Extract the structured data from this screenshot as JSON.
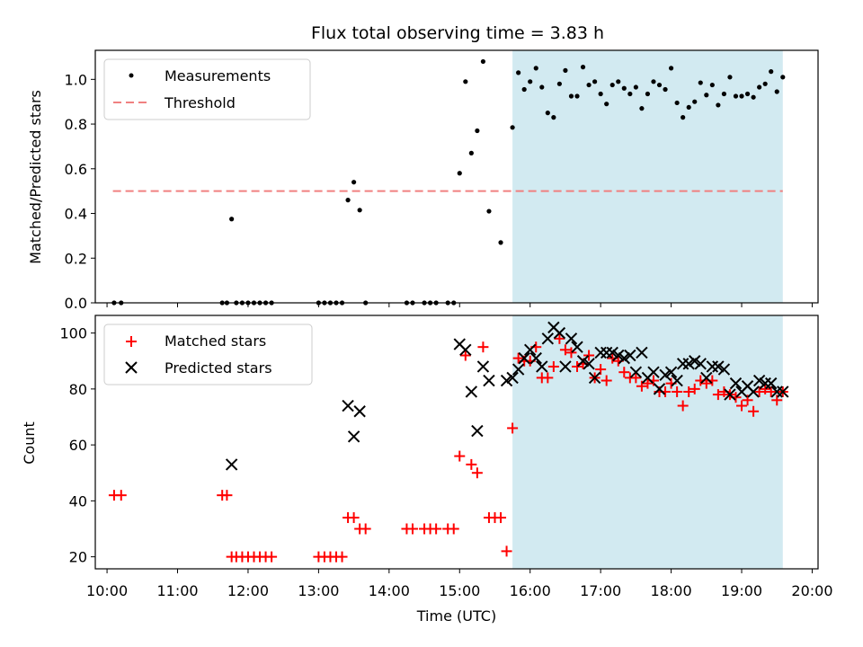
{
  "colors": {
    "measurement": "#000000",
    "threshold": "#f08080",
    "matched": "#ff0000",
    "predicted": "#000000",
    "shade": "#add8e6"
  },
  "chart_data": [
    {
      "type": "scatter",
      "title": "Flux total observing time = 3.83 h",
      "xlabel": "",
      "ylabel": "Matched/Predicted stars",
      "xlim": [
        "09:50",
        "20:05"
      ],
      "ylim": [
        0,
        1.13
      ],
      "yticks": [
        "0.0",
        "0.2",
        "0.4",
        "0.6",
        "0.8",
        "1.0"
      ],
      "grid": false,
      "legend_placement": "top-left",
      "shaded_interval": [
        "15:45",
        "19:35"
      ],
      "threshold": {
        "name": "Threshold",
        "y": 0.5,
        "x_range": [
          "10:05",
          "19:35"
        ],
        "style": "dashed"
      },
      "series": [
        {
          "name": "Measurements",
          "marker": "dot",
          "points": [
            [
              "10:06",
              0
            ],
            [
              "10:12",
              0
            ],
            [
              "11:38",
              0
            ],
            [
              "11:42",
              0
            ],
            [
              "11:46",
              0.375
            ],
            [
              "11:50",
              0
            ],
            [
              "11:55",
              0
            ],
            [
              "12:00",
              0
            ],
            [
              "12:05",
              0
            ],
            [
              "12:10",
              0
            ],
            [
              "12:15",
              0
            ],
            [
              "12:20",
              0
            ],
            [
              "13:00",
              0
            ],
            [
              "13:05",
              0
            ],
            [
              "13:10",
              0
            ],
            [
              "13:15",
              0
            ],
            [
              "13:20",
              0
            ],
            [
              "13:25",
              0.46
            ],
            [
              "13:30",
              0.54
            ],
            [
              "13:35",
              0.415
            ],
            [
              "13:40",
              0
            ],
            [
              "14:15",
              0
            ],
            [
              "14:20",
              0
            ],
            [
              "14:30",
              0
            ],
            [
              "14:35",
              0
            ],
            [
              "14:40",
              0
            ],
            [
              "14:50",
              0
            ],
            [
              "14:55",
              0
            ],
            [
              "15:00",
              0.58
            ],
            [
              "15:05",
              0.99
            ],
            [
              "15:10",
              0.67
            ],
            [
              "15:15",
              0.77
            ],
            [
              "15:20",
              1.08
            ],
            [
              "15:25",
              0.41
            ],
            [
              "15:35",
              0.27
            ],
            [
              "15:45",
              0.785
            ],
            [
              "15:50",
              1.03
            ],
            [
              "15:55",
              0.955
            ],
            [
              "16:00",
              0.99
            ],
            [
              "16:05",
              1.05
            ],
            [
              "16:10",
              0.965
            ],
            [
              "16:15",
              0.85
            ],
            [
              "16:20",
              0.83
            ],
            [
              "16:25",
              0.98
            ],
            [
              "16:30",
              1.04
            ],
            [
              "16:35",
              0.925
            ],
            [
              "16:40",
              0.925
            ],
            [
              "16:45",
              1.055
            ],
            [
              "16:50",
              0.975
            ],
            [
              "16:55",
              0.99
            ],
            [
              "17:00",
              0.935
            ],
            [
              "17:05",
              0.89
            ],
            [
              "17:10",
              0.975
            ],
            [
              "17:15",
              0.99
            ],
            [
              "17:20",
              0.96
            ],
            [
              "17:25",
              0.935
            ],
            [
              "17:30",
              0.965
            ],
            [
              "17:35",
              0.87
            ],
            [
              "17:40",
              0.935
            ],
            [
              "17:45",
              0.99
            ],
            [
              "17:50",
              0.975
            ],
            [
              "17:55",
              0.955
            ],
            [
              "18:00",
              1.05
            ],
            [
              "18:05",
              0.895
            ],
            [
              "18:10",
              0.83
            ],
            [
              "18:15",
              0.875
            ],
            [
              "18:20",
              0.9
            ],
            [
              "18:25",
              0.985
            ],
            [
              "18:30",
              0.93
            ],
            [
              "18:35",
              0.975
            ],
            [
              "18:40",
              0.885
            ],
            [
              "18:45",
              0.935
            ],
            [
              "18:50",
              1.01
            ],
            [
              "18:55",
              0.925
            ],
            [
              "19:00",
              0.925
            ],
            [
              "19:05",
              0.935
            ],
            [
              "19:10",
              0.92
            ],
            [
              "19:15",
              0.965
            ],
            [
              "19:20",
              0.98
            ],
            [
              "19:25",
              1.035
            ],
            [
              "19:30",
              0.945
            ],
            [
              "19:35",
              1.01
            ]
          ]
        }
      ]
    },
    {
      "type": "scatter",
      "title": "",
      "xlabel": "Time (UTC)",
      "ylabel": "Count",
      "xlim": [
        "09:50",
        "20:05"
      ],
      "ylim": [
        15.7,
        106.3
      ],
      "yticks": [
        "20",
        "40",
        "60",
        "80",
        "100"
      ],
      "xticks": [
        "10:00",
        "11:00",
        "12:00",
        "13:00",
        "14:00",
        "15:00",
        "16:00",
        "17:00",
        "18:00",
        "19:00",
        "20:00"
      ],
      "grid": false,
      "legend_placement": "top-left",
      "shaded_interval": [
        "15:45",
        "19:35"
      ],
      "series": [
        {
          "name": "Matched stars",
          "marker": "plus",
          "points": [
            [
              "10:06",
              42
            ],
            [
              "10:12",
              42
            ],
            [
              "11:38",
              42
            ],
            [
              "11:42",
              42
            ],
            [
              "11:46",
              20
            ],
            [
              "11:50",
              20
            ],
            [
              "11:55",
              20
            ],
            [
              "12:00",
              20
            ],
            [
              "12:05",
              20
            ],
            [
              "12:10",
              20
            ],
            [
              "12:15",
              20
            ],
            [
              "12:20",
              20
            ],
            [
              "13:00",
              20
            ],
            [
              "13:05",
              20
            ],
            [
              "13:10",
              20
            ],
            [
              "13:15",
              20
            ],
            [
              "13:20",
              20
            ],
            [
              "13:25",
              34
            ],
            [
              "13:30",
              34
            ],
            [
              "13:35",
              30
            ],
            [
              "13:40",
              30
            ],
            [
              "14:15",
              30
            ],
            [
              "14:20",
              30
            ],
            [
              "14:30",
              30
            ],
            [
              "14:35",
              30
            ],
            [
              "14:40",
              30
            ],
            [
              "14:50",
              30
            ],
            [
              "14:55",
              30
            ],
            [
              "15:00",
              56
            ],
            [
              "15:05",
              92
            ],
            [
              "15:10",
              53
            ],
            [
              "15:15",
              50
            ],
            [
              "15:20",
              95
            ],
            [
              "15:25",
              34
            ],
            [
              "15:30",
              34
            ],
            [
              "15:35",
              34
            ],
            [
              "15:40",
              22
            ],
            [
              "15:45",
              66
            ],
            [
              "15:50",
              91
            ],
            [
              "15:55",
              90
            ],
            [
              "16:00",
              90
            ],
            [
              "16:05",
              95
            ],
            [
              "16:10",
              84
            ],
            [
              "16:15",
              84
            ],
            [
              "16:20",
              88
            ],
            [
              "16:25",
              98
            ],
            [
              "16:30",
              94
            ],
            [
              "16:35",
              93
            ],
            [
              "16:40",
              88
            ],
            [
              "16:45",
              89
            ],
            [
              "16:50",
              92
            ],
            [
              "16:55",
              84
            ],
            [
              "17:00",
              87
            ],
            [
              "17:05",
              83
            ],
            [
              "17:10",
              91
            ],
            [
              "17:15",
              90
            ],
            [
              "17:20",
              86
            ],
            [
              "17:25",
              84
            ],
            [
              "17:30",
              84
            ],
            [
              "17:35",
              81
            ],
            [
              "17:40",
              82
            ],
            [
              "17:45",
              83
            ],
            [
              "17:50",
              79
            ],
            [
              "17:55",
              79
            ],
            [
              "18:00",
              82
            ],
            [
              "18:05",
              79
            ],
            [
              "18:10",
              74
            ],
            [
              "18:15",
              79
            ],
            [
              "18:20",
              80
            ],
            [
              "18:25",
              83
            ],
            [
              "18:30",
              82
            ],
            [
              "18:35",
              83
            ],
            [
              "18:40",
              78
            ],
            [
              "18:45",
              79
            ],
            [
              "18:50",
              78
            ],
            [
              "18:55",
              77
            ],
            [
              "19:00",
              74
            ],
            [
              "19:05",
              76
            ],
            [
              "19:10",
              72
            ],
            [
              "19:15",
              79
            ],
            [
              "19:20",
              80
            ],
            [
              "19:25",
              79
            ],
            [
              "19:30",
              76
            ],
            [
              "19:35",
              79
            ]
          ]
        },
        {
          "name": "Predicted stars",
          "marker": "x",
          "points": [
            [
              "11:46",
              53
            ],
            [
              "13:25",
              74
            ],
            [
              "13:30",
              63
            ],
            [
              "13:35",
              72
            ],
            [
              "15:00",
              96
            ],
            [
              "15:05",
              94
            ],
            [
              "15:10",
              79
            ],
            [
              "15:15",
              65
            ],
            [
              "15:20",
              88
            ],
            [
              "15:25",
              83
            ],
            [
              "15:40",
              83
            ],
            [
              "15:45",
              84
            ],
            [
              "15:50",
              87
            ],
            [
              "15:55",
              91
            ],
            [
              "16:00",
              94
            ],
            [
              "16:05",
              91
            ],
            [
              "16:10",
              88
            ],
            [
              "16:15",
              98
            ],
            [
              "16:20",
              102
            ],
            [
              "16:25",
              100
            ],
            [
              "16:30",
              88
            ],
            [
              "16:35",
              98
            ],
            [
              "16:40",
              95
            ],
            [
              "16:45",
              90
            ],
            [
              "16:50",
              89
            ],
            [
              "16:55",
              84
            ],
            [
              "17:00",
              93
            ],
            [
              "17:05",
              93
            ],
            [
              "17:10",
              93
            ],
            [
              "17:15",
              92
            ],
            [
              "17:20",
              91
            ],
            [
              "17:25",
              92
            ],
            [
              "17:30",
              86
            ],
            [
              "17:35",
              93
            ],
            [
              "17:40",
              84
            ],
            [
              "17:45",
              86
            ],
            [
              "17:50",
              80
            ],
            [
              "17:55",
              85
            ],
            [
              "18:00",
              86
            ],
            [
              "18:05",
              83
            ],
            [
              "18:10",
              89
            ],
            [
              "18:15",
              89
            ],
            [
              "18:20",
              90
            ],
            [
              "18:25",
              89
            ],
            [
              "18:30",
              84
            ],
            [
              "18:35",
              88
            ],
            [
              "18:40",
              88
            ],
            [
              "18:45",
              87
            ],
            [
              "18:50",
              78
            ],
            [
              "18:55",
              82
            ],
            [
              "19:00",
              79
            ],
            [
              "19:05",
              81
            ],
            [
              "19:10",
              79
            ],
            [
              "19:15",
              83
            ],
            [
              "19:20",
              82
            ],
            [
              "19:25",
              82
            ],
            [
              "19:30",
              79
            ],
            [
              "19:35",
              79
            ]
          ]
        }
      ]
    }
  ]
}
